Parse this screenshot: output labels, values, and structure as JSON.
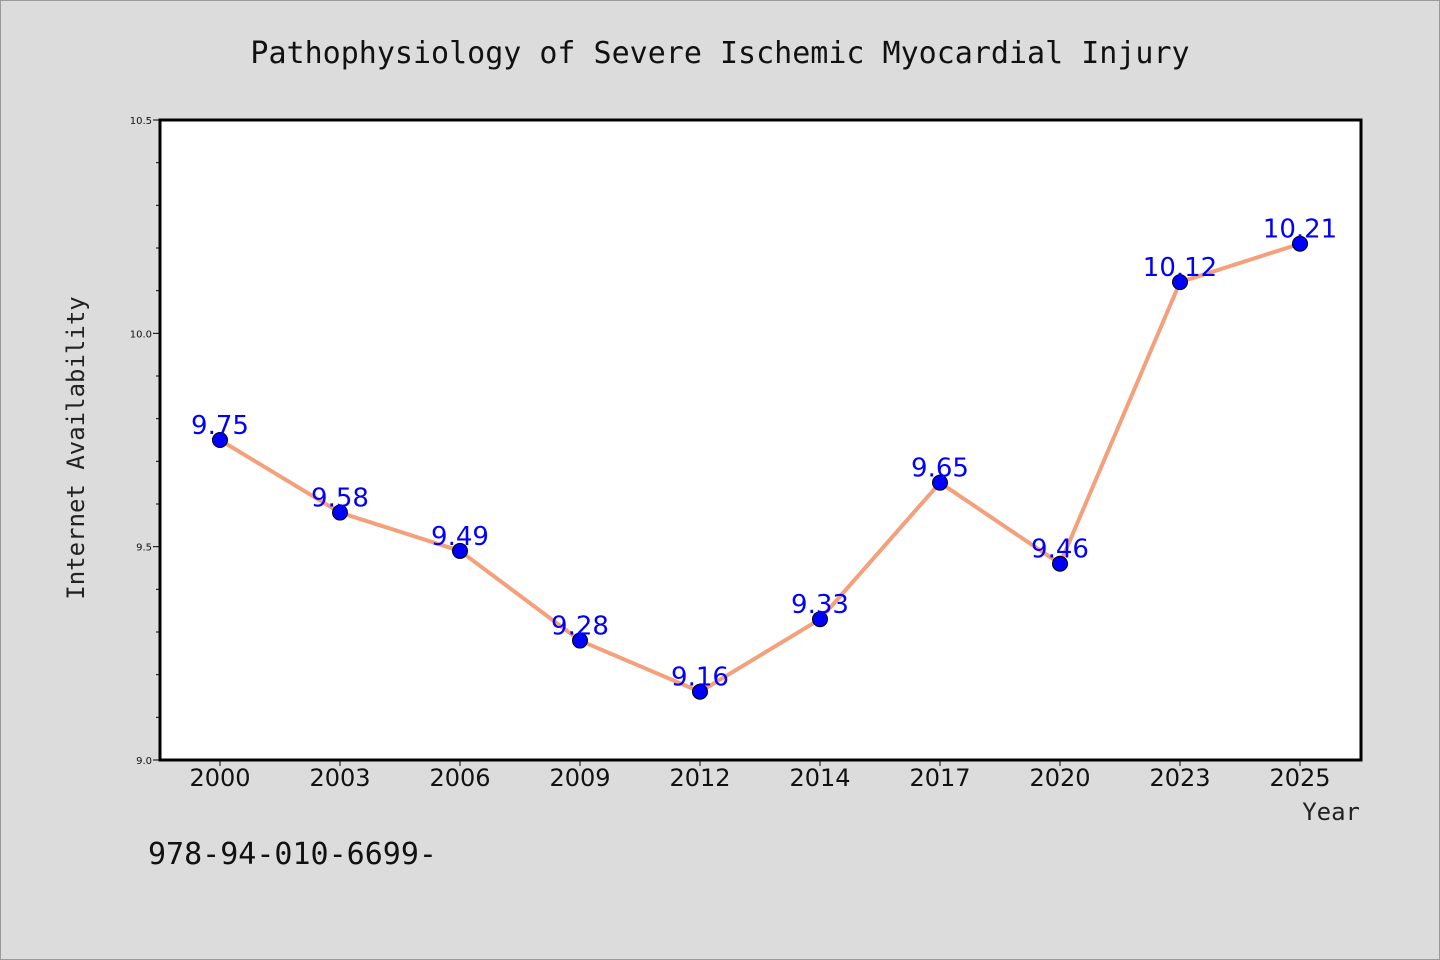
{
  "chart_data": {
    "type": "line",
    "title": "Pathophysiology of Severe Ischemic Myocardial Injury",
    "xlabel": "Year",
    "ylabel": "Internet Availability",
    "categories": [
      "2000",
      "2003",
      "2006",
      "2009",
      "2012",
      "2014",
      "2017",
      "2020",
      "2023",
      "2025"
    ],
    "series": [
      {
        "values": [
          9.75,
          9.58,
          9.49,
          9.28,
          9.16,
          9.33,
          9.65,
          9.46,
          10.12,
          10.21
        ],
        "labels": [
          "9.75",
          "9.58",
          "9.49",
          "9.28",
          "9.16",
          "9.33",
          "9.65",
          "9.46",
          "10.12",
          "10.21"
        ]
      }
    ],
    "ylim": [
      9.0,
      10.5
    ],
    "yticks": [
      9.0,
      9.5,
      10.0,
      10.5
    ],
    "ytick_labels": [
      "9.0",
      "9.5",
      "10.0",
      "10.5"
    ],
    "grid": false,
    "line_color": "#f4a07c",
    "marker_color": "#0000ff",
    "label_color": "#0000ff"
  },
  "footer": {
    "text": "978-94-010-6699-"
  }
}
